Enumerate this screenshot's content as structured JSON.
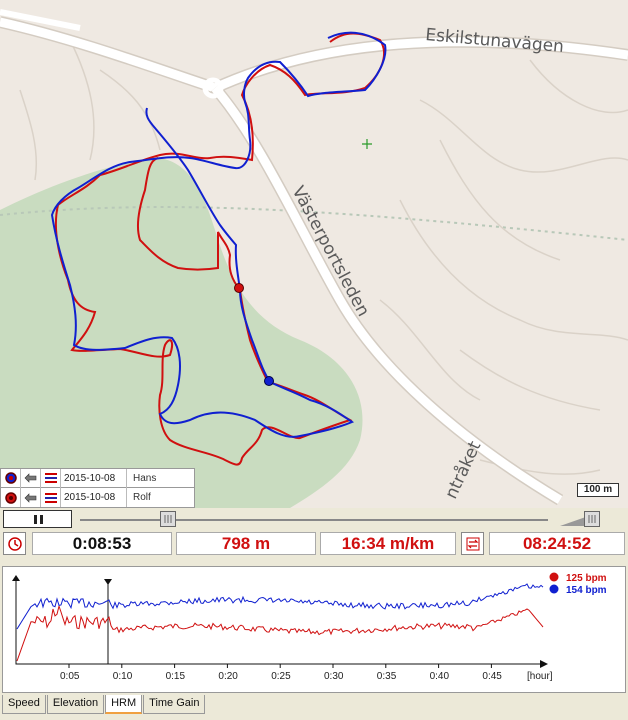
{
  "map": {
    "road_labels": [
      "Eskilstunavägen",
      "Västerportsleden",
      "ntråket"
    ],
    "scale_label": "100 m",
    "colors": {
      "runner1": "#d01010",
      "runner2": "#1020d0",
      "forest": "#c9dcc0",
      "road": "#ffffff",
      "background": "#efe9e2"
    }
  },
  "runners": [
    {
      "date": "2015-10-08",
      "name": "Hans",
      "color": "#1020d0"
    },
    {
      "date": "2015-10-08",
      "name": "Rolf",
      "color": "#d01010"
    }
  ],
  "playback": {
    "state_icon": "pause-icon",
    "position_fraction": 0.18,
    "speed_fraction": 0.9
  },
  "stats": {
    "elapsed": "0:08:53",
    "distance": "798 m",
    "pace": "16:34 m/km",
    "clock": "08:24:52",
    "icons": [
      "clock-icon",
      "swap-icon"
    ]
  },
  "hrm": {
    "legend": [
      {
        "label": "125 bpm",
        "color": "#d01010"
      },
      {
        "label": "154 bpm",
        "color": "#1020d0"
      }
    ],
    "x_ticks": [
      "0:05",
      "0:10",
      "0:15",
      "0:20",
      "0:25",
      "0:30",
      "0:35",
      "0:40",
      "0:45"
    ],
    "x_unit": "[hour]"
  },
  "chart_data": {
    "type": "line",
    "x_ticks": [
      "0:05",
      "0:10",
      "0:15",
      "0:20",
      "0:25",
      "0:30",
      "0:35",
      "0:40",
      "0:45"
    ],
    "xlabel": "[hour]",
    "series": [
      {
        "name": "125 bpm",
        "color": "#d01010"
      },
      {
        "name": "154 bpm",
        "color": "#1020d0"
      }
    ],
    "cursor_x": "0:08:53"
  },
  "tabs": [
    {
      "label": "Speed",
      "active": false
    },
    {
      "label": "Elevation",
      "active": false
    },
    {
      "label": "HRM",
      "active": true
    },
    {
      "label": "Time Gain",
      "active": false
    }
  ]
}
